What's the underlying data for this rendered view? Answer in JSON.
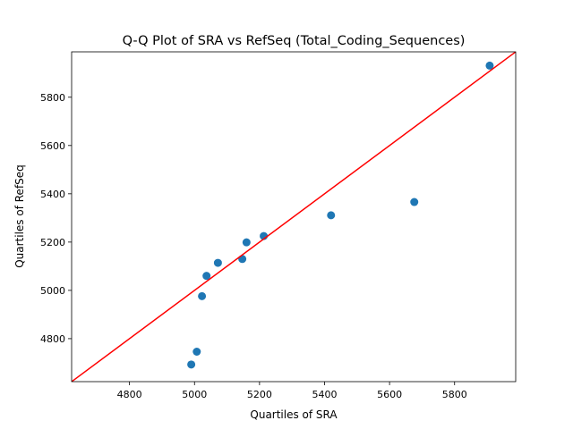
{
  "chart_data": {
    "type": "scatter",
    "title": "Q-Q Plot of SRA vs RefSeq (Total_Coding_Sequences)",
    "xlabel": "Quartiles of SRA",
    "ylabel": "Quartiles of RefSeq",
    "xlim": [
      4622,
      5988
    ],
    "ylim": [
      4622,
      5988
    ],
    "xticks": [
      4800,
      5000,
      5200,
      5400,
      5600,
      5800
    ],
    "yticks": [
      4800,
      5000,
      5200,
      5400,
      5600,
      5800
    ],
    "grid": false,
    "points": [
      {
        "x": 4990,
        "y": 4693
      },
      {
        "x": 5007,
        "y": 4746
      },
      {
        "x": 5023,
        "y": 4976
      },
      {
        "x": 5037,
        "y": 5060
      },
      {
        "x": 5072,
        "y": 5114
      },
      {
        "x": 5147,
        "y": 5130
      },
      {
        "x": 5160,
        "y": 5199
      },
      {
        "x": 5213,
        "y": 5225
      },
      {
        "x": 5420,
        "y": 5311
      },
      {
        "x": 5676,
        "y": 5366
      },
      {
        "x": 5908,
        "y": 5931
      }
    ],
    "reference_line": {
      "from": [
        4622,
        4622
      ],
      "to": [
        5988,
        5988
      ]
    },
    "colors": {
      "points": "#1f77b4",
      "line": "#ff0000"
    }
  }
}
